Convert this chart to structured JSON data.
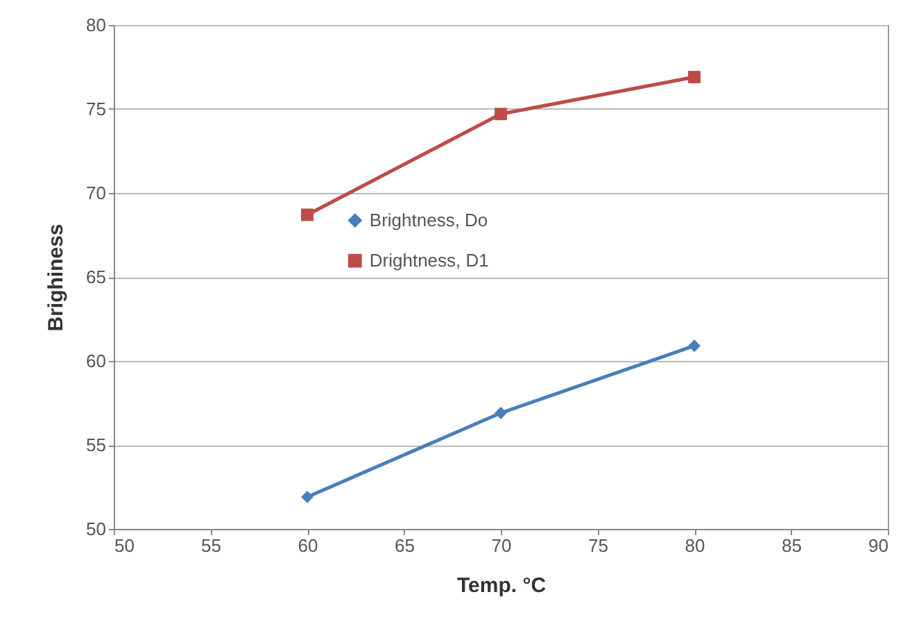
{
  "chart_data": {
    "type": "line",
    "xlabel": "Temp. °C",
    "ylabel": "Brighiness",
    "x": [
      60,
      70,
      80
    ],
    "series": [
      {
        "name": "Brightness, Do",
        "color": "#4a7ebb",
        "marker": "diamond",
        "values": [
          51.9,
          56.9,
          60.9
        ]
      },
      {
        "name": "Drightness, D1",
        "color": "#be4b48",
        "marker": "square",
        "values": [
          68.7,
          74.7,
          76.9
        ]
      }
    ],
    "xlim": [
      50,
      90
    ],
    "xticks": [
      50,
      55,
      60,
      65,
      70,
      75,
      80,
      85,
      90
    ],
    "ylim": [
      50,
      80
    ],
    "yticks": [
      50,
      55,
      60,
      65,
      70,
      75,
      80
    ],
    "grid": "y",
    "legend": "center"
  }
}
